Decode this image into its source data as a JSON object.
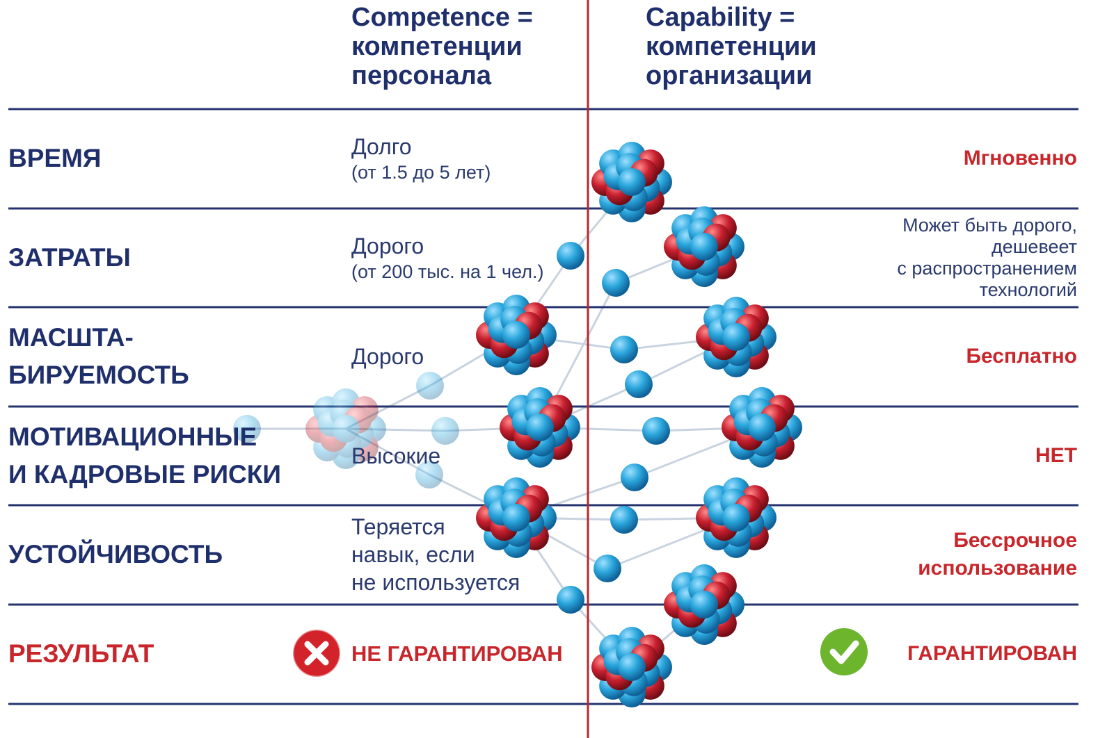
{
  "header": {
    "left": "Competence =\nкомпетенции\nперсонала",
    "right": "Capability =\nкомпетенции\nорганизации"
  },
  "rows": [
    {
      "label": "ВРЕМЯ",
      "left": "Долго",
      "left_note": "(от 1.5 до 5 лет)",
      "right": "Мгновенно"
    },
    {
      "label": "ЗАТРАТЫ",
      "left": "Дорого",
      "left_note": "(от 200 тыс. на 1 чел.)",
      "right": "Может быть дорого,\nдешевеет\nс распространением\nтехнологий"
    },
    {
      "label": "МАСШТА-\nБИРУЕМОСТЬ",
      "left": "Дорого",
      "right": "Бесплатно"
    },
    {
      "label": "МОТИВАЦИОННЫЕ\nИ КАДРОВЫЕ РИСКИ",
      "left": "Высокие",
      "right": "НЕТ"
    },
    {
      "label": "УСТОЙЧИВОСТЬ",
      "left": "Теряется\nнавык, если\nне используется",
      "right": "Бессрочное\nиспользование"
    }
  ],
  "result": {
    "label": "РЕЗУЛЬТАТ",
    "left": "НЕ ГАРАНТИРОВАН",
    "right": "ГАРАНТИРОВАН"
  }
}
